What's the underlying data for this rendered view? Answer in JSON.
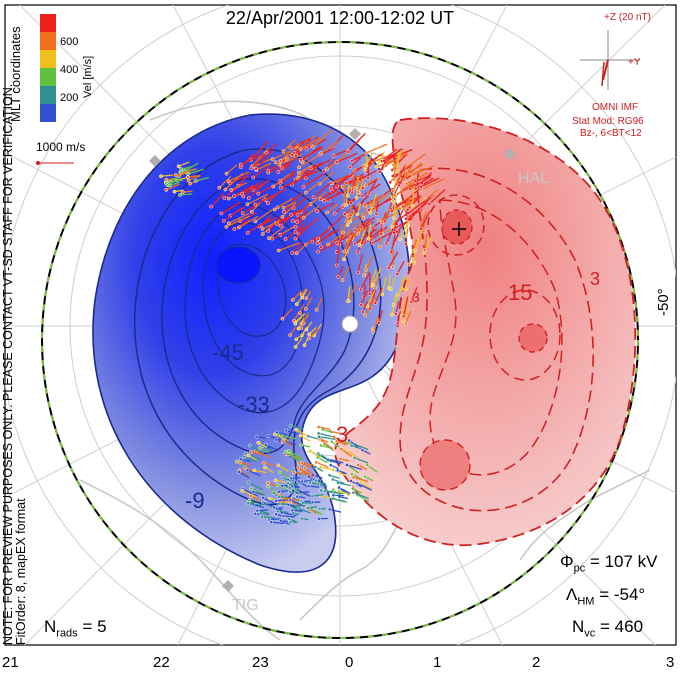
{
  "title": "22/Apr/2001 12:00-12:02 UT",
  "mlt_label": "MLT coordinates",
  "preview_note": "NOTE: FOR PREVIEW PURPOSES ONLY. PLEASE CONTACT VT-SD STAFF FOR VERIFICATION.",
  "fit_order": "FitOrder: 8, mapEX format",
  "colorbar": {
    "label": "Vel [m/s]",
    "ticks": [
      "600",
      "400",
      "200"
    ],
    "colors": [
      "#f02020",
      "#f07020",
      "#f0c020",
      "#60c040",
      "#309090",
      "#3050d0"
    ]
  },
  "scale_vector": "1000 m/s",
  "imf": {
    "z_label": "+Z (20 nT)",
    "y_label": "+Y",
    "source": "OMNI IMF",
    "model": "Stat Mod: RG96",
    "condition": "Bz-, 6<BT<12"
  },
  "lat_label": "-50°",
  "contour_labels": {
    "neg": [
      "-45",
      "-33",
      "-9"
    ],
    "pos": [
      "15",
      "3",
      "3",
      "3"
    ]
  },
  "stations": [
    "HAL",
    "TIG"
  ],
  "stats": {
    "phi_pc": "107 kV",
    "lambda_hm": "-54°",
    "n_vc": "460",
    "n_rads": "5"
  },
  "mlt_ticks": [
    "21",
    "22",
    "23",
    "0",
    "1",
    "2",
    "3"
  ],
  "colors": {
    "negative": "#2040e0",
    "positive": "#e04040",
    "border": "#000000",
    "hm_boundary": "#7fc040"
  }
}
